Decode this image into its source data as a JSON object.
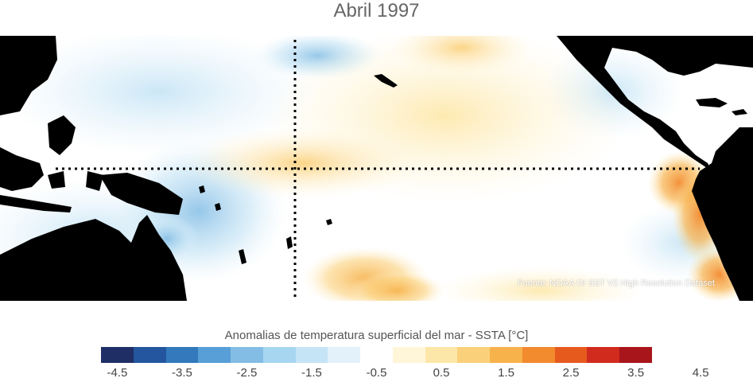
{
  "title": "Abril 1997",
  "source_note": "Fuente: NOAA OI SST V2 High Resolution Dataset",
  "colorbar": {
    "label": "Anomalias de temperatura superficial del mar - SSTA  [°C]",
    "colors": [
      "#1f2f66",
      "#23569e",
      "#3379bb",
      "#579fd6",
      "#83bde5",
      "#a7d6f0",
      "#c5e4f5",
      "#e2f1fa",
      "#ffffff",
      "#fff6d9",
      "#fde7a8",
      "#fbd07a",
      "#f7b24c",
      "#f28a2e",
      "#e65a1e",
      "#d12b1d",
      "#a8151b"
    ],
    "tick_labels": [
      "-4.5",
      "-3.5",
      "-2.5",
      "-1.5",
      "-0.5",
      "0.5",
      "1.5",
      "2.5",
      "3.5",
      "4.5"
    ]
  },
  "map": {
    "land_color": "#000000",
    "reference_lines": "equator and dateline (dotted)"
  }
}
